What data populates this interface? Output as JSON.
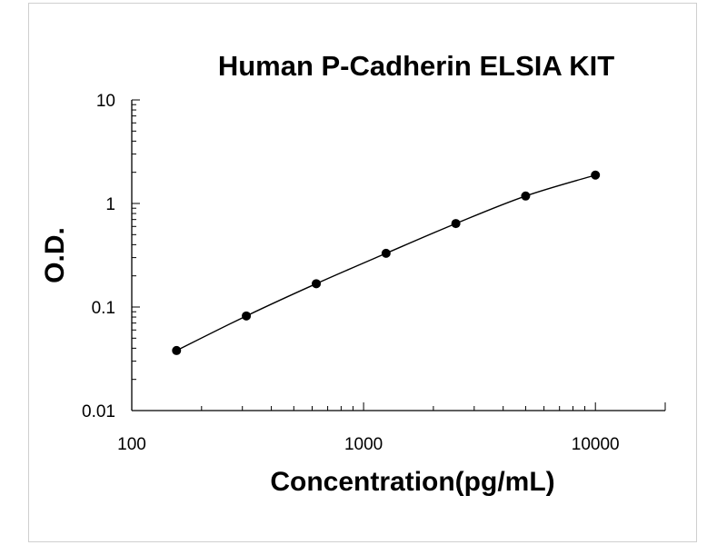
{
  "chart_data": {
    "type": "line",
    "title": "Human P-Cadherin ELSIA KIT",
    "xlabel": "Concentration(pg/mL)",
    "ylabel": "O.D.",
    "x_scale": "log",
    "y_scale": "log",
    "xlim": [
      100,
      20000
    ],
    "ylim": [
      0.01,
      10
    ],
    "x_ticks": [
      100,
      1000,
      10000
    ],
    "x_tick_labels": [
      "100",
      "1000",
      "10000"
    ],
    "y_ticks": [
      0.01,
      0.1,
      1,
      10
    ],
    "y_tick_labels": [
      "0.01",
      "0.1",
      "1",
      "10"
    ],
    "grid": false,
    "legend": "none",
    "series": [
      {
        "x": [
          156,
          312,
          625,
          1250,
          2500,
          5000,
          10000
        ],
        "y": [
          0.038,
          0.082,
          0.168,
          0.33,
          0.64,
          1.18,
          1.88
        ]
      }
    ]
  },
  "colors": {
    "axis": "#000000",
    "line": "#000000",
    "marker": "#000000",
    "frame": "#cfcfcf"
  }
}
